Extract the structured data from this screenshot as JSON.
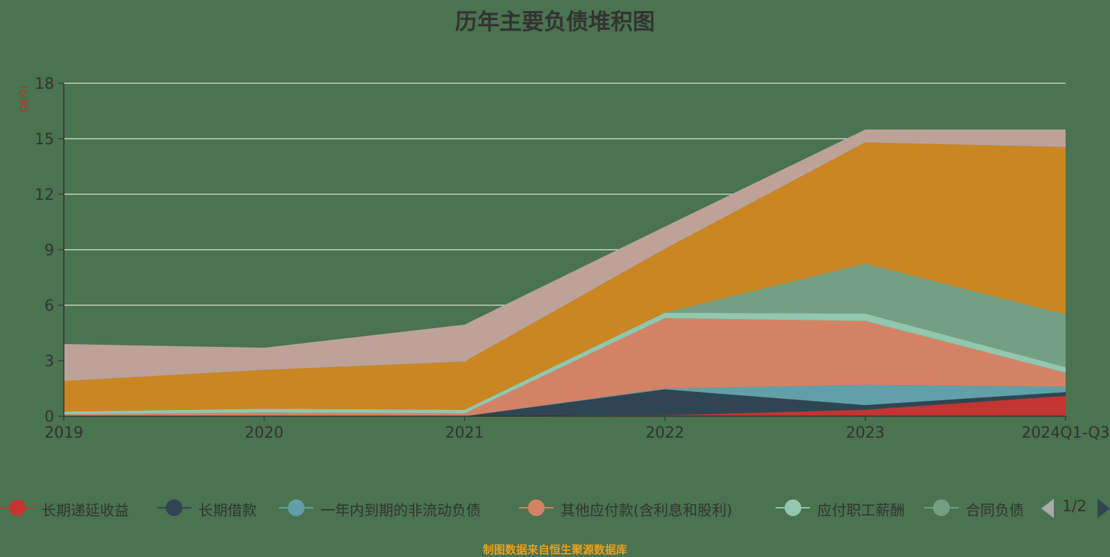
{
  "title": "历年主要负债堆积图",
  "unit_label": "(亿元)",
  "footer": "制图数据来自恒生聚源数据库",
  "pager": {
    "text": "1/2"
  },
  "chart_data": {
    "type": "area",
    "stacked": true,
    "categories": [
      "2019",
      "2020",
      "2021",
      "2022",
      "2023",
      "2024Q1-Q3"
    ],
    "ylim": [
      0,
      18
    ],
    "yticks": [
      0,
      3,
      6,
      9,
      12,
      15,
      18
    ],
    "grid": true,
    "legend_position": "bottom",
    "series": [
      {
        "name": "长期递延收益",
        "color": "#c23531",
        "values": [
          0,
          0,
          0,
          0.05,
          0.35,
          1.1
        ]
      },
      {
        "name": "长期借款",
        "color": "#2f4554",
        "values": [
          0,
          0,
          0,
          1.4,
          0.25,
          0.2
        ]
      },
      {
        "name": "一年内到期的非流动负债",
        "color": "#61a0a8",
        "values": [
          0,
          0,
          0,
          0.05,
          1.1,
          0.3
        ]
      },
      {
        "name": "其他应付款(含利息和股利)",
        "color": "#d48265",
        "values": [
          0.1,
          0.2,
          0.15,
          3.8,
          3.45,
          0.75
        ]
      },
      {
        "name": "应付职工薪酬",
        "color": "#91c7ae",
        "values": [
          0.15,
          0.2,
          0.2,
          0.3,
          0.4,
          0.3
        ]
      },
      {
        "name": "合同负债",
        "color": "#749f83",
        "values": [
          0,
          0,
          0,
          0,
          2.7,
          2.85
        ]
      },
      {
        "name": "",
        "color": "#ca8622",
        "values": [
          1.65,
          2.1,
          2.6,
          3.45,
          6.55,
          9.05
        ]
      },
      {
        "name": "",
        "color": "#bda29a",
        "values": [
          2.0,
          1.2,
          2.0,
          1.2,
          0.7,
          0.95
        ]
      }
    ]
  }
}
